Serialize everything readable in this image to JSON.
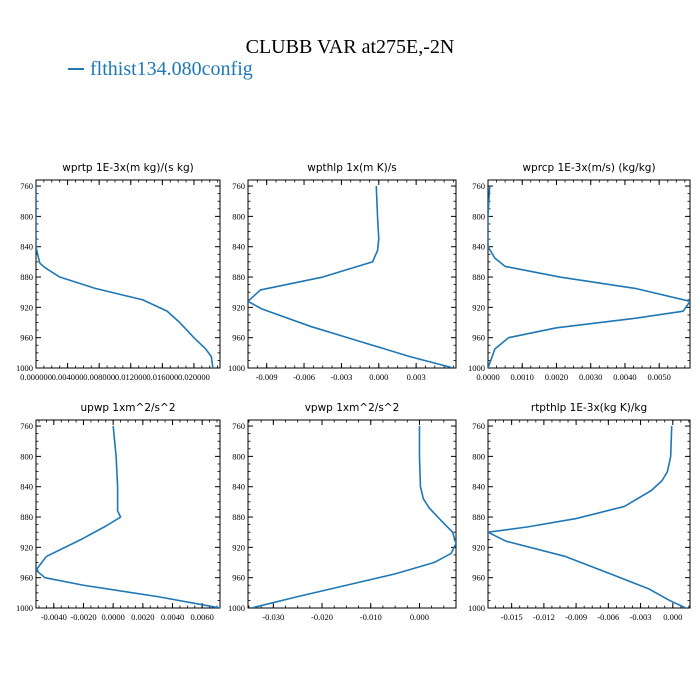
{
  "figure": {
    "title": "CLUBB VAR at275E,-2N",
    "legend_label": "flthist134.080config",
    "line_color": "#1f77b4"
  },
  "chart_data": [
    {
      "type": "line",
      "title": "wprtp  1E-3x(m kg)/(s kg)",
      "xlabel": "",
      "ylabel": "",
      "xlim": [
        0.0,
        0.0233
      ],
      "ylim": [
        1000,
        752
      ],
      "y_inverted": true,
      "xticks": [
        0.0,
        0.004,
        0.008,
        0.012,
        0.016,
        0.02
      ],
      "xtick_labels": [
        "0.000000",
        "0.004000",
        "0.008000",
        "0.012000",
        "0.016000",
        "0.020000"
      ],
      "yticks": [
        760,
        800,
        840,
        880,
        920,
        960,
        1000
      ],
      "ytick_labels": [
        "760",
        "800",
        "840",
        "880",
        "920",
        "960",
        "1000"
      ],
      "series": [
        {
          "x": [
            0.0,
            0.0,
            0.0,
            0.0002,
            0.0005,
            0.0012,
            0.003,
            0.0075,
            0.0135,
            0.0166,
            0.0182,
            0.02,
            0.0215,
            0.0222,
            0.0224
          ],
          "y": [
            760,
            800,
            840,
            850,
            862,
            868,
            880,
            895,
            910,
            925,
            940,
            960,
            975,
            985,
            1000
          ]
        }
      ]
    },
    {
      "type": "line",
      "title": "wpthlp  1x(m K)/s",
      "xlabel": "",
      "ylabel": "",
      "xlim": [
        -0.0105,
        0.0062
      ],
      "ylim": [
        1000,
        752
      ],
      "y_inverted": true,
      "xticks": [
        -0.009,
        -0.006,
        -0.003,
        0.0,
        0.003
      ],
      "xtick_labels": [
        "-0.009",
        "-0.006",
        "-0.003",
        "0.000",
        "0.003"
      ],
      "yticks": [
        760,
        800,
        840,
        880,
        920,
        960,
        1000
      ],
      "ytick_labels": [
        "760",
        "800",
        "840",
        "880",
        "920",
        "960",
        "1000"
      ],
      "series": [
        {
          "x": [
            -0.0002,
            -0.0001,
            0.0,
            -0.0001,
            -0.0005,
            -0.0015,
            -0.0045,
            -0.0095,
            -0.0105,
            -0.0094,
            -0.0055,
            -0.0015,
            0.0025,
            0.006
          ],
          "y": [
            760,
            800,
            830,
            845,
            860,
            865,
            880,
            897,
            912,
            922,
            945,
            965,
            985,
            1000
          ]
        }
      ]
    },
    {
      "type": "line",
      "title": "wprcp  1E-3x(m/s) (kg/kg)",
      "xlabel": "",
      "ylabel": "",
      "xlim": [
        0.0,
        0.0059
      ],
      "ylim": [
        1000,
        752
      ],
      "y_inverted": true,
      "xticks": [
        0.0,
        0.001,
        0.002,
        0.003,
        0.004,
        0.005
      ],
      "xtick_labels": [
        "0.0000",
        "0.0010",
        "0.0020",
        "0.0030",
        "0.0040",
        "0.0050"
      ],
      "yticks": [
        760,
        800,
        840,
        880,
        920,
        960,
        1000
      ],
      "ytick_labels": [
        "760",
        "800",
        "840",
        "880",
        "920",
        "960",
        "1000"
      ],
      "series": [
        {
          "x": [
            5e-05,
            0.0,
            0.0,
            0.0002,
            0.0005,
            0.0021,
            0.0043,
            0.0059,
            0.0057,
            0.0042,
            0.002,
            0.0006,
            0.0002,
            0.0
          ],
          "y": [
            760,
            800,
            840,
            855,
            866,
            880,
            895,
            912,
            925,
            935,
            947,
            960,
            975,
            1000
          ]
        }
      ]
    },
    {
      "type": "line",
      "title": "upwp  1xm^2/s^2",
      "xlabel": "",
      "ylabel": "",
      "xlim": [
        -0.0052,
        0.0072
      ],
      "ylim": [
        1000,
        752
      ],
      "y_inverted": true,
      "xticks": [
        -0.004,
        -0.002,
        0.0,
        0.002,
        0.004,
        0.006
      ],
      "xtick_labels": [
        "-0.0040",
        "-0.0020",
        "0.0000",
        "0.0020",
        "0.0040",
        "0.0060"
      ],
      "yticks": [
        760,
        800,
        840,
        880,
        920,
        960,
        1000
      ],
      "ytick_labels": [
        "760",
        "800",
        "840",
        "880",
        "920",
        "960",
        "1000"
      ],
      "series": [
        {
          "x": [
            0.0,
            0.0002,
            0.0003,
            0.0003,
            0.0003,
            0.0005,
            -0.0005,
            -0.0022,
            -0.0045,
            -0.0052,
            -0.0046,
            -0.002,
            0.003,
            0.0072
          ],
          "y": [
            760,
            800,
            840,
            860,
            872,
            880,
            892,
            910,
            932,
            950,
            960,
            970,
            985,
            1000
          ]
        }
      ]
    },
    {
      "type": "line",
      "title": "vpwp  1xm^2/s^2",
      "xlabel": "",
      "ylabel": "",
      "xlim": [
        -0.0352,
        0.0075
      ],
      "ylim": [
        1000,
        752
      ],
      "y_inverted": true,
      "xticks": [
        -0.03,
        -0.02,
        -0.01,
        0.0
      ],
      "xtick_labels": [
        "-0.030",
        "-0.020",
        "-0.010",
        "0.000"
      ],
      "yticks": [
        760,
        800,
        840,
        880,
        920,
        960,
        1000
      ],
      "ytick_labels": [
        "760",
        "800",
        "840",
        "880",
        "920",
        "960",
        "1000"
      ],
      "series": [
        {
          "x": [
            0.0,
            0.0,
            0.0002,
            0.0008,
            0.002,
            0.0045,
            0.0068,
            0.0075,
            0.0065,
            0.003,
            -0.005,
            -0.015,
            -0.025,
            -0.0345
          ],
          "y": [
            760,
            800,
            840,
            856,
            868,
            885,
            900,
            915,
            928,
            940,
            955,
            970,
            985,
            1000
          ]
        }
      ]
    },
    {
      "type": "line",
      "title": "rtpthlp  1E-3x(kg K)/kg",
      "xlabel": "",
      "ylabel": "",
      "xlim": [
        -0.0172,
        0.0016
      ],
      "ylim": [
        1000,
        752
      ],
      "y_inverted": true,
      "xticks": [
        -0.015,
        -0.012,
        -0.009,
        -0.006,
        -0.003,
        0.0
      ],
      "xtick_labels": [
        "-0.015",
        "-0.012",
        "-0.009",
        "-0.006",
        "-0.003",
        "0.000"
      ],
      "yticks": [
        760,
        800,
        840,
        880,
        920,
        960,
        1000
      ],
      "ytick_labels": [
        "760",
        "800",
        "840",
        "880",
        "920",
        "960",
        "1000"
      ],
      "series": [
        {
          "x": [
            -0.0001,
            -0.0002,
            -0.0005,
            -0.001,
            -0.002,
            -0.0045,
            -0.009,
            -0.0135,
            -0.0172,
            -0.0155,
            -0.01,
            -0.0058,
            -0.0022,
            -0.0003,
            0.0012
          ],
          "y": [
            760,
            800,
            820,
            832,
            845,
            866,
            882,
            893,
            900,
            912,
            932,
            955,
            975,
            990,
            1000
          ]
        }
      ]
    }
  ]
}
